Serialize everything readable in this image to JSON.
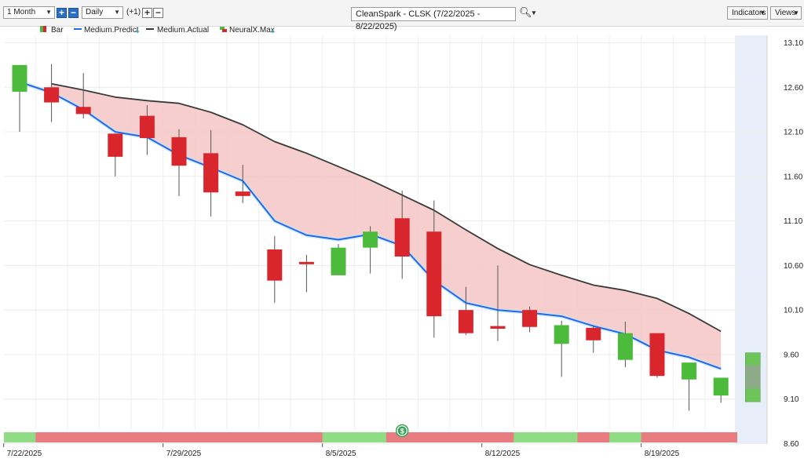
{
  "toolbar": {
    "period": "1 Month",
    "interval": "Daily",
    "offset": "(+1)",
    "plus_icon": "plus-icon",
    "minus_icon": "minus-icon",
    "title": "CleanSpark - CLSK (7/22/2025 - 8/22/2025)",
    "search_icon": "search-icon",
    "indicators_label": "Indicators",
    "views_label": "Views"
  },
  "legend": {
    "bar": "Bar",
    "predict": "Medium.Predict",
    "actual": "Medium.Actual",
    "neuralx": "NeuralX.Max"
  },
  "colors": {
    "up": "#4cbb3c",
    "down": "#d9262c",
    "predict": "#2468e8",
    "actual": "#3a3a3a",
    "fill": "#f5c6c6",
    "forecast_bg": "#e7eef9",
    "band_up": "#8fdc84",
    "band_down": "#e97c80"
  },
  "chart_data": {
    "type": "candlestick",
    "title": "CleanSpark - CLSK (7/22/2025 - 8/22/2025)",
    "ylim": [
      8.6,
      13.1
    ],
    "y_ticks": [
      "13.10",
      "12.60",
      "12.10",
      "11.60",
      "11.10",
      "10.60",
      "10.10",
      "9.60",
      "9.10",
      "8.60"
    ],
    "x_tick_labels": [
      "7/22/2025",
      "7/29/2025",
      "8/5/2025",
      "8/12/2025",
      "8/19/2025"
    ],
    "x_tick_index": [
      0,
      5,
      10,
      15,
      20
    ],
    "candles": [
      {
        "o": 12.55,
        "h": 12.85,
        "l": 12.1,
        "c": 12.85
      },
      {
        "o": 12.6,
        "h": 12.86,
        "l": 12.21,
        "c": 12.43
      },
      {
        "o": 12.38,
        "h": 12.76,
        "l": 12.25,
        "c": 12.3
      },
      {
        "o": 12.08,
        "h": 12.08,
        "l": 11.6,
        "c": 11.82
      },
      {
        "o": 12.28,
        "h": 12.4,
        "l": 11.84,
        "c": 12.03
      },
      {
        "o": 12.04,
        "h": 12.13,
        "l": 11.38,
        "c": 11.72
      },
      {
        "o": 11.86,
        "h": 12.12,
        "l": 11.15,
        "c": 11.42
      },
      {
        "o": 11.43,
        "h": 11.73,
        "l": 11.3,
        "c": 11.38
      },
      {
        "o": 10.78,
        "h": 10.93,
        "l": 10.18,
        "c": 10.43
      },
      {
        "o": 10.64,
        "h": 10.72,
        "l": 10.3,
        "c": 10.62
      },
      {
        "o": 10.49,
        "h": 10.84,
        "l": 10.49,
        "c": 10.8
      },
      {
        "o": 10.8,
        "h": 11.04,
        "l": 10.51,
        "c": 10.98
      },
      {
        "o": 11.13,
        "h": 11.44,
        "l": 10.45,
        "c": 10.7
      },
      {
        "o": 10.98,
        "h": 11.33,
        "l": 9.79,
        "c": 10.03
      },
      {
        "o": 10.1,
        "h": 10.36,
        "l": 9.82,
        "c": 9.84
      },
      {
        "o": 9.92,
        "h": 10.6,
        "l": 9.75,
        "c": 9.89
      },
      {
        "o": 10.1,
        "h": 10.14,
        "l": 9.85,
        "c": 9.91
      },
      {
        "o": 9.72,
        "h": 9.98,
        "l": 9.35,
        "c": 9.93
      },
      {
        "o": 9.9,
        "h": 9.93,
        "l": 9.62,
        "c": 9.76
      },
      {
        "o": 9.54,
        "h": 9.97,
        "l": 9.46,
        "c": 9.84
      },
      {
        "o": 9.84,
        "h": 9.84,
        "l": 9.34,
        "c": 9.36
      },
      {
        "o": 9.32,
        "h": 9.48,
        "l": 8.97,
        "c": 9.51
      },
      {
        "o": 9.14,
        "h": 9.34,
        "l": 9.06,
        "c": 9.34
      }
    ],
    "forecast_candle": {
      "index": 23,
      "low": 9.07,
      "high": 9.62,
      "mid_low": 9.22,
      "mid_high": 9.48
    },
    "series": [
      {
        "name": "Medium.Predict",
        "values": [
          12.66,
          12.54,
          12.35,
          12.1,
          12.04,
          11.84,
          11.7,
          11.55,
          11.1,
          10.94,
          10.89,
          10.95,
          10.82,
          10.43,
          10.18,
          10.1,
          10.07,
          10.03,
          9.92,
          9.83,
          9.65,
          9.57,
          9.44
        ]
      },
      {
        "name": "Medium.Actual",
        "values": [
          null,
          12.64,
          12.57,
          12.49,
          12.45,
          12.42,
          12.32,
          12.18,
          11.99,
          11.86,
          11.71,
          11.56,
          11.39,
          11.22,
          11.0,
          10.79,
          10.61,
          10.49,
          10.38,
          10.32,
          10.23,
          10.06,
          9.86
        ]
      }
    ],
    "band": [
      "up",
      "down",
      "down",
      "down",
      "down",
      "down",
      "down",
      "down",
      "down",
      "down",
      "up",
      "up",
      "down",
      "down",
      "down",
      "down",
      "up",
      "up",
      "down",
      "up",
      "down",
      "down",
      "down"
    ],
    "band_marker_index": 12,
    "band_marker_symbol": "$"
  }
}
